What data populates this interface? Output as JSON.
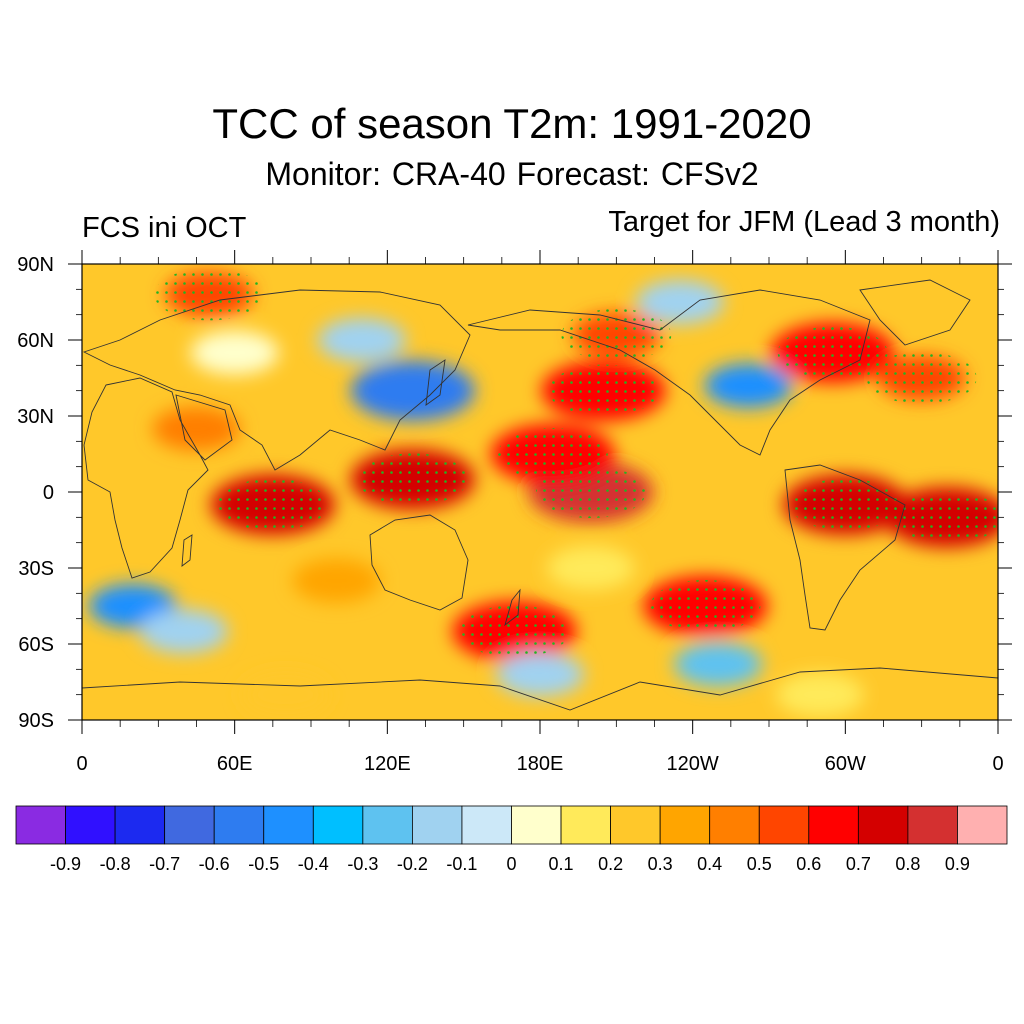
{
  "title": "TCC of season T2m: 1991-2020",
  "subtitle": "Monitor: CRA-40   Forecast: CFSv2",
  "left_label": "FCS ini OCT",
  "right_label": "Target for JFM (Lead 3 month)",
  "map": {
    "lat_labels": [
      "90N",
      "60N",
      "30N",
      "0",
      "30S",
      "60S",
      "90S"
    ],
    "lon_labels": [
      "0",
      "60E",
      "120E",
      "180E",
      "120W",
      "60W",
      "0"
    ],
    "significance_dot_color": "#22b422",
    "coastline_color": "#333333",
    "regions": [
      {
        "name": "tropical-pacific-core",
        "lon": 200,
        "lat": 0,
        "value": 0.8
      },
      {
        "name": "indian-ocean-core",
        "lon": 75,
        "lat": -5,
        "value": 0.75
      },
      {
        "name": "maritime-continent",
        "lon": 130,
        "lat": 5,
        "value": 0.7
      },
      {
        "name": "tropical-atlantic",
        "lon": 340,
        "lat": -10,
        "value": 0.75
      },
      {
        "name": "amazon",
        "lon": 300,
        "lat": -5,
        "value": 0.75
      },
      {
        "name": "south-pacific",
        "lon": 245,
        "lat": -45,
        "value": 0.65
      },
      {
        "name": "southern-ocean-south-of-australia",
        "lon": 170,
        "lat": -55,
        "value": 0.6
      },
      {
        "name": "north-pacific-northeast",
        "lon": 205,
        "lat": 40,
        "value": 0.6
      },
      {
        "name": "alaska",
        "lon": 210,
        "lat": 62,
        "value": 0.55
      },
      {
        "name": "north-pacific-west",
        "lon": 185,
        "lat": 15,
        "value": 0.65
      },
      {
        "name": "arctic-europe",
        "lon": 50,
        "lat": 78,
        "value": 0.55
      },
      {
        "name": "eastern-canada",
        "lon": 295,
        "lat": 55,
        "value": 0.6
      },
      {
        "name": "north-atlantic",
        "lon": 330,
        "lat": 45,
        "value": 0.55
      },
      {
        "name": "arabia",
        "lon": 45,
        "lat": 25,
        "value": 0.45
      },
      {
        "name": "south-indian",
        "lon": 100,
        "lat": -35,
        "value": 0.4
      },
      {
        "name": "north-america-interior",
        "lon": 262,
        "lat": 42,
        "value": -0.4
      },
      {
        "name": "east-asia-japan",
        "lon": 130,
        "lat": 40,
        "value": -0.6
      },
      {
        "name": "siberia",
        "lon": 110,
        "lat": 60,
        "value": -0.2
      },
      {
        "name": "greenland-sea",
        "lon": 235,
        "lat": 75,
        "value": -0.2
      },
      {
        "name": "south-atlantic-ocean",
        "lon": 20,
        "lat": -45,
        "value": -0.45
      },
      {
        "name": "southern-indian-ocean",
        "lon": 40,
        "lat": -55,
        "value": -0.2
      },
      {
        "name": "ross-sea",
        "lon": 180,
        "lat": -72,
        "value": -0.2
      },
      {
        "name": "amundsen-sea",
        "lon": 250,
        "lat": -68,
        "value": -0.25
      },
      {
        "name": "eurasia-mid",
        "lon": 60,
        "lat": 55,
        "value": 0.05
      },
      {
        "name": "central-pacific-south",
        "lon": 200,
        "lat": -30,
        "value": 0.15
      },
      {
        "name": "antarctica-east",
        "lon": 80,
        "lat": -80,
        "value": 0.25
      },
      {
        "name": "antarctica-west",
        "lon": 290,
        "lat": -80,
        "value": 0.2
      }
    ]
  },
  "colorbar": {
    "colors": [
      "#8a2be2",
      "#3010ff",
      "#1c2af0",
      "#4069e0",
      "#2e7cf0",
      "#1e90ff",
      "#00bfff",
      "#5ec2f0",
      "#a0d2f0",
      "#cce8f8",
      "#ffffcc",
      "#ffea5a",
      "#ffc82a",
      "#ffa500",
      "#ff7f00",
      "#ff4500",
      "#ff0000",
      "#d40000",
      "#d43030",
      "#ffb0b0"
    ],
    "labels": [
      "-0.9",
      "-0.8",
      "-0.7",
      "-0.6",
      "-0.5",
      "-0.4",
      "-0.3",
      "-0.2",
      "-0.1",
      "0",
      "0.1",
      "0.2",
      "0.3",
      "0.4",
      "0.5",
      "0.6",
      "0.7",
      "0.8",
      "0.9"
    ]
  }
}
